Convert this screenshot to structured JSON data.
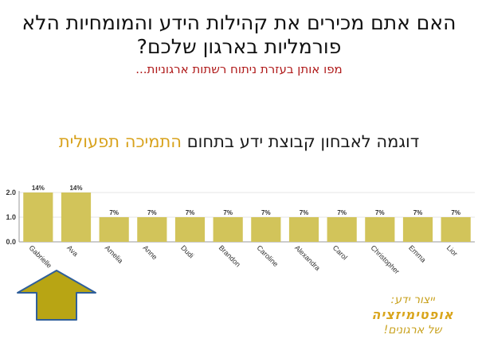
{
  "slide": {
    "title": "האם אתם מכירים את קהילות הידע והמומחיות הלא פורמליות בארגון שלכם?",
    "subtitle": "מפו אותן בעזרת ניתוח רשתות ארגוניות...",
    "example_prefix": "דוגמה לאבחון קבוצת ידע בתחום",
    "example_highlight": "התמיכה תפעולית",
    "brand_line1": "ייצור ידע:",
    "brand_line2": "אופטימיזציה",
    "brand_line3": "של ארגונים!"
  },
  "colors": {
    "bar": "#d2c45a",
    "highlight": "#d8a21c",
    "subtitle": "#b01c1c",
    "arrow_fill": "#b8a514",
    "arrow_stroke": "#2f5f9a"
  },
  "chart_data": {
    "type": "bar",
    "categories": [
      "Gabrielle",
      "Ava",
      "Amelia",
      "Anne",
      "Dudi",
      "Brandon",
      "Caroline",
      "Alexandra",
      "Carol",
      "Christopher",
      "Emma",
      "Lior"
    ],
    "values": [
      2,
      2,
      1,
      1,
      1,
      1,
      1,
      1,
      1,
      1,
      1,
      1
    ],
    "data_labels": [
      "14%",
      "14%",
      "7%",
      "7%",
      "7%",
      "7%",
      "7%",
      "7%",
      "7%",
      "7%",
      "7%",
      "7%"
    ],
    "yticks": [
      "0.0",
      "1.0",
      "2.0"
    ],
    "ylim": [
      0,
      2
    ],
    "grid": true,
    "legend": "none"
  }
}
